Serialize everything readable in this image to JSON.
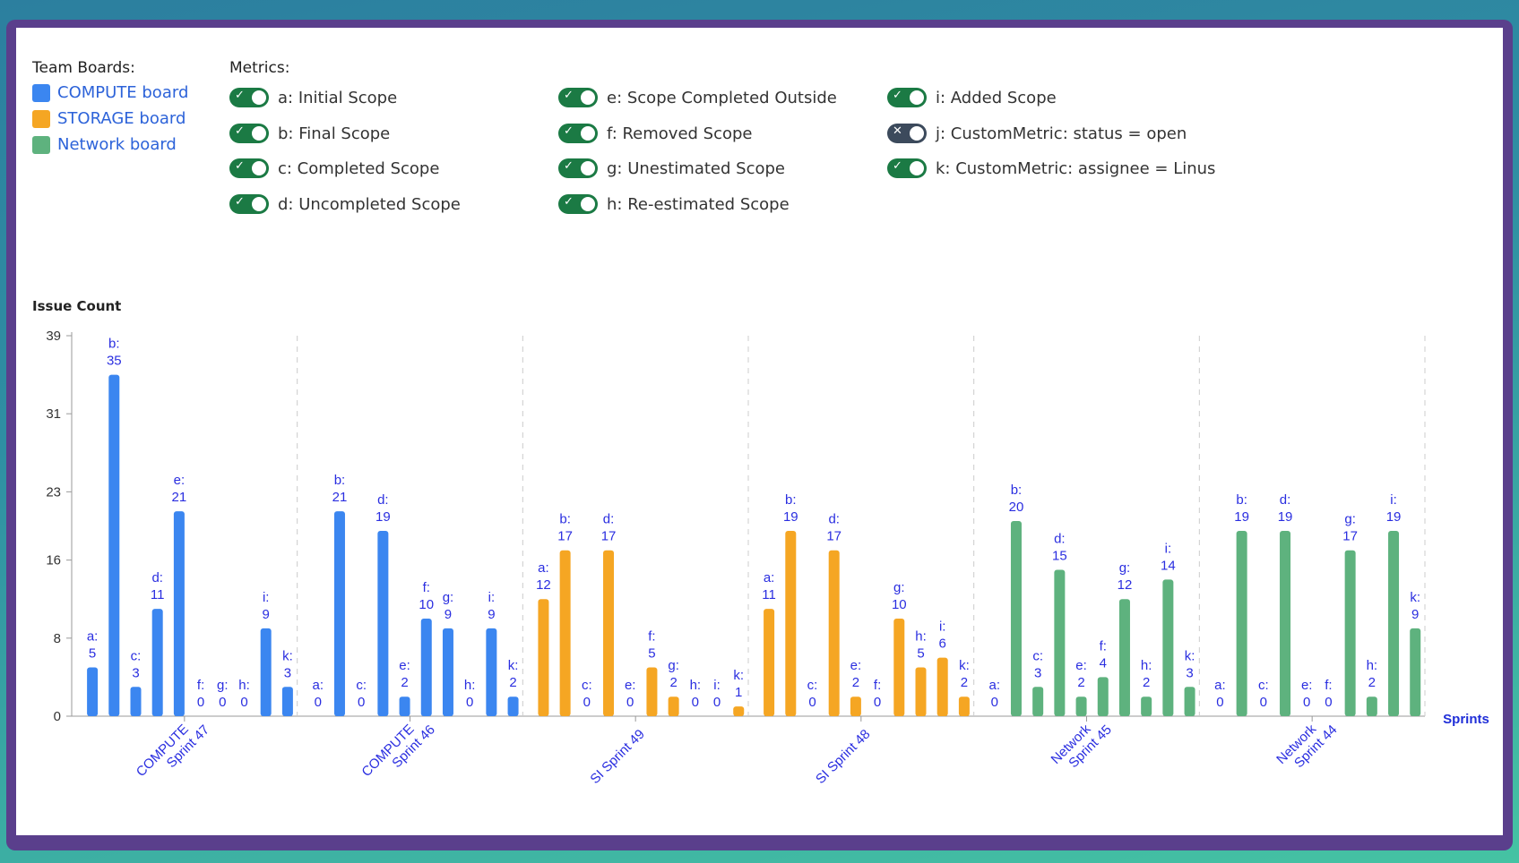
{
  "team_boards": {
    "title": "Team Boards:",
    "items": [
      {
        "label": "COMPUTE board",
        "color": "#3b86f0"
      },
      {
        "label": "STORAGE board",
        "color": "#f5a623"
      },
      {
        "label": "Network board",
        "color": "#5eb27e"
      }
    ]
  },
  "metrics": {
    "title": "Metrics:",
    "items": [
      {
        "label": "a: Initial Scope",
        "on": true
      },
      {
        "label": "b: Final Scope",
        "on": true
      },
      {
        "label": "c: Completed Scope",
        "on": true
      },
      {
        "label": "d: Uncompleted Scope",
        "on": true
      },
      {
        "label": "e: Scope Completed Outside",
        "on": true
      },
      {
        "label": "f: Removed Scope",
        "on": true
      },
      {
        "label": "g: Unestimated Scope",
        "on": true
      },
      {
        "label": "h: Re-estimated Scope",
        "on": true
      },
      {
        "label": "i: Added Scope",
        "on": true
      },
      {
        "label": "j: CustomMetric: status = open",
        "on": false
      },
      {
        "label": "k: CustomMetric: assignee = Linus",
        "on": true
      }
    ]
  },
  "chart_data": {
    "type": "bar",
    "ylabel": "Issue Count",
    "xlabel": "Sprints",
    "ylim": [
      0,
      39
    ],
    "yticks": [
      0,
      8,
      16,
      23,
      31,
      39
    ],
    "metric_keys": [
      "a",
      "b",
      "c",
      "d",
      "e",
      "f",
      "g",
      "h",
      "i",
      "k"
    ],
    "groups": [
      {
        "name": [
          "COMPUTE",
          "Sprint 47"
        ],
        "board": "COMPUTE board",
        "color": "#3b86f0",
        "values": [
          5,
          35,
          3,
          11,
          21,
          0,
          0,
          0,
          9,
          3
        ]
      },
      {
        "name": [
          "COMPUTE",
          "Sprint 46"
        ],
        "board": "COMPUTE board",
        "color": "#3b86f0",
        "values": [
          0,
          21,
          0,
          19,
          2,
          10,
          9,
          0,
          9,
          2
        ]
      },
      {
        "name": [
          "SI Sprint 49"
        ],
        "board": "STORAGE board",
        "color": "#f5a623",
        "values": [
          12,
          17,
          0,
          17,
          0,
          5,
          2,
          0,
          0,
          1
        ]
      },
      {
        "name": [
          "SI Sprint 48"
        ],
        "board": "STORAGE board",
        "color": "#f5a623",
        "values": [
          11,
          19,
          0,
          17,
          2,
          0,
          10,
          5,
          6,
          2
        ]
      },
      {
        "name": [
          "Network",
          "Sprint 45"
        ],
        "board": "Network board",
        "color": "#5eb27e",
        "values": [
          0,
          20,
          3,
          15,
          2,
          4,
          12,
          2,
          14,
          3
        ]
      },
      {
        "name": [
          "Network",
          "Sprint 44"
        ],
        "board": "Network board",
        "color": "#5eb27e",
        "values": [
          0,
          19,
          0,
          19,
          0,
          0,
          17,
          2,
          19,
          9
        ]
      }
    ]
  }
}
